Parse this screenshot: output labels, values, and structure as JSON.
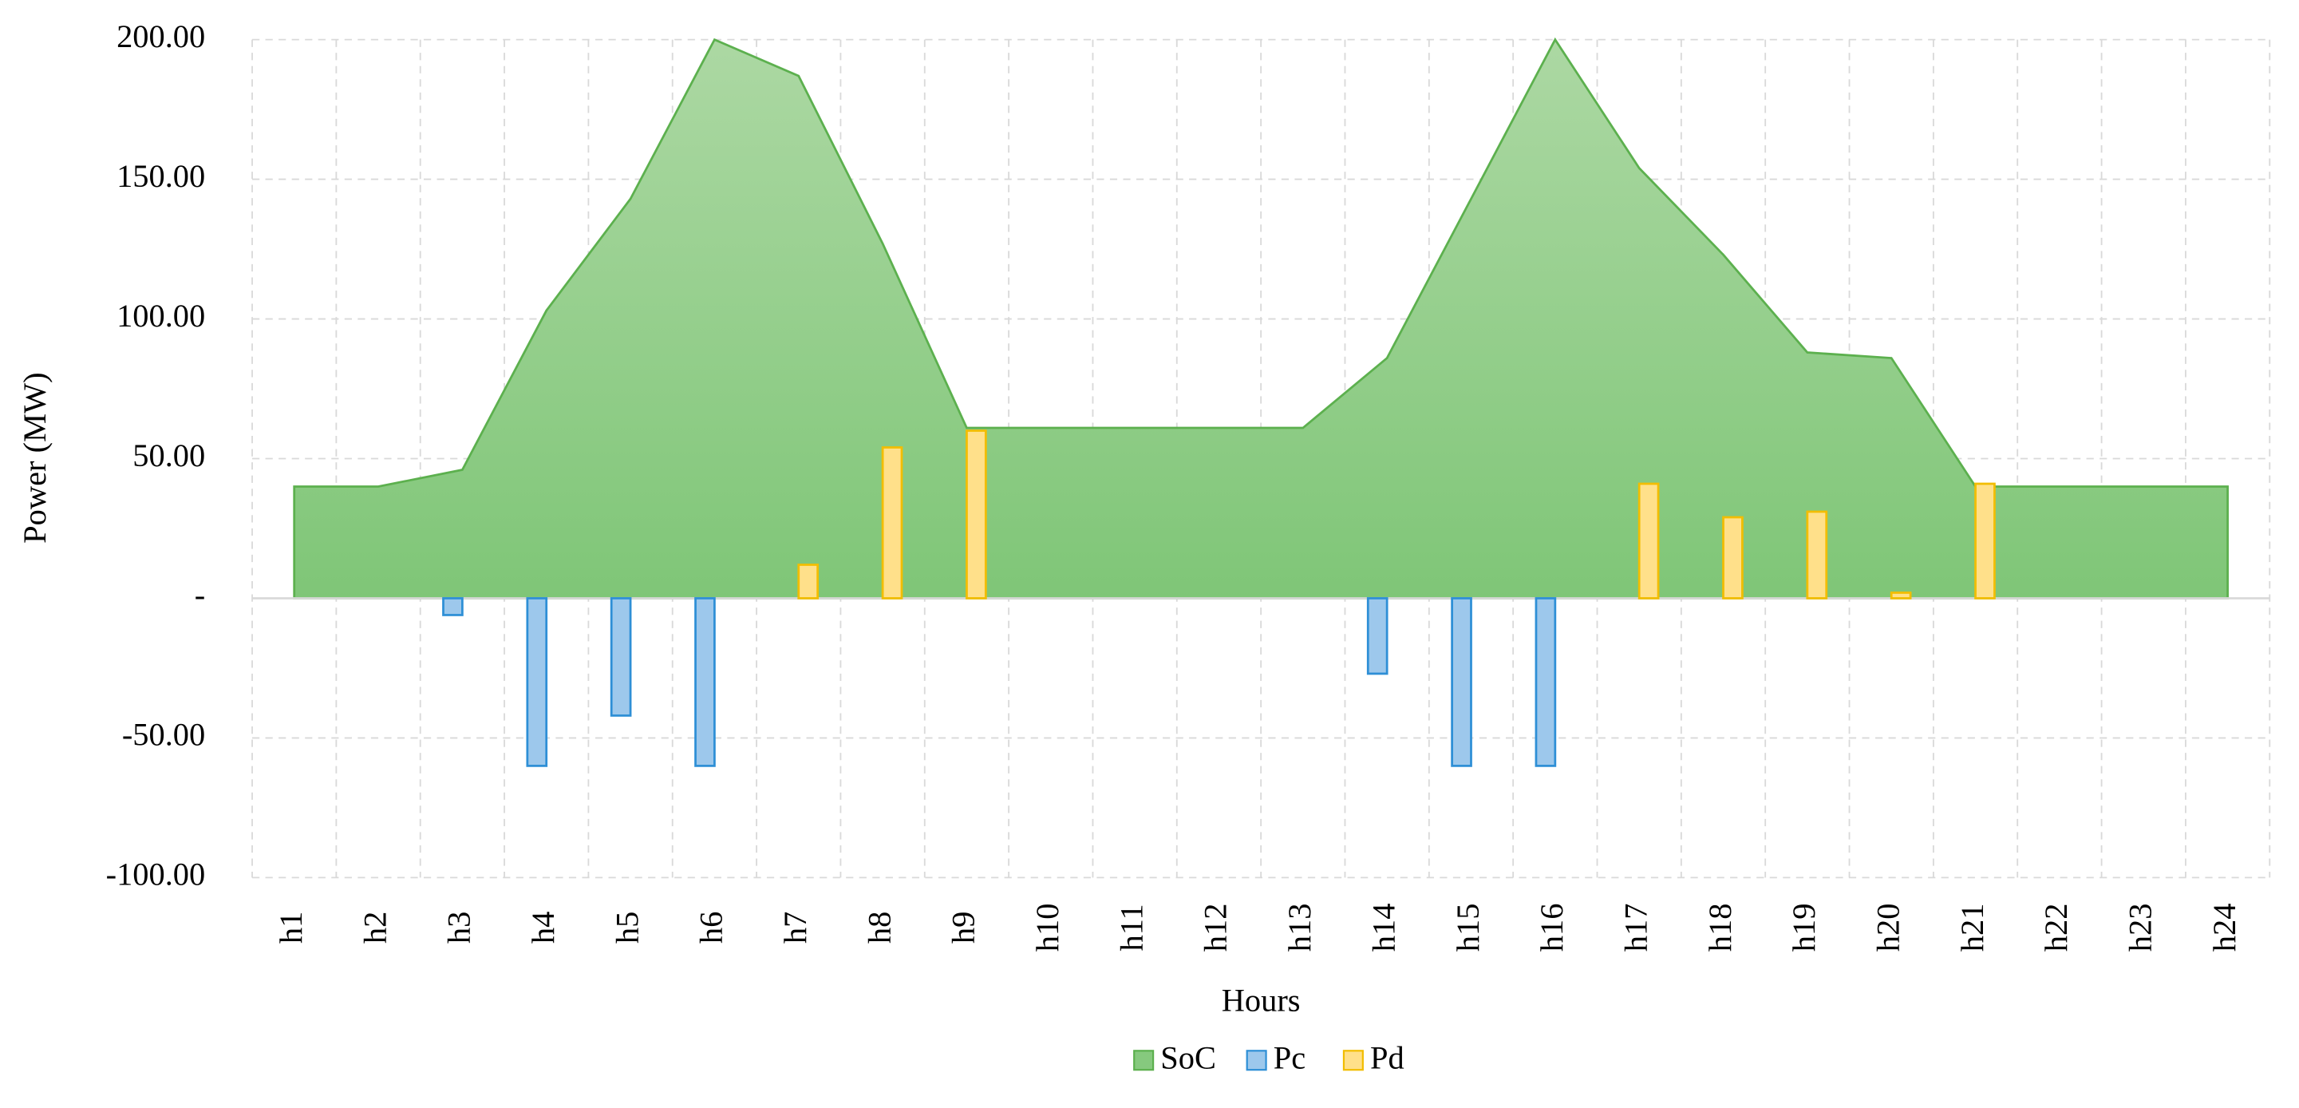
{
  "chart_data": {
    "type": "combo",
    "x_label": "Hours",
    "y_label": "Power (MW)",
    "categories": [
      "h1",
      "h2",
      "h3",
      "h4",
      "h5",
      "h6",
      "h7",
      "h8",
      "h9",
      "h10",
      "h11",
      "h12",
      "h13",
      "h14",
      "h15",
      "h16",
      "h17",
      "h18",
      "h19",
      "h20",
      "h21",
      "h22",
      "h23",
      "h24"
    ],
    "series": [
      {
        "name": "SoC",
        "type": "area",
        "color": "#86c97e",
        "values": [
          40,
          40,
          46,
          103,
          143,
          200,
          187,
          127,
          61,
          61,
          61,
          61,
          61,
          86,
          143,
          200,
          154,
          123,
          88,
          86,
          40,
          40,
          40,
          40
        ]
      },
      {
        "name": "Pc",
        "type": "bar",
        "color": "#9dc8ec",
        "values": [
          0,
          0,
          -6,
          -60,
          -42,
          -60,
          0,
          0,
          0,
          0,
          0,
          0,
          0,
          -27,
          -60,
          -60,
          0,
          0,
          0,
          0,
          0,
          0,
          0,
          0
        ]
      },
      {
        "name": "Pd",
        "type": "bar",
        "color": "#ffe08a",
        "values": [
          0,
          0,
          0,
          0,
          0,
          0,
          12,
          54,
          60,
          0,
          0,
          0,
          0,
          0,
          0,
          0,
          41,
          29,
          31,
          2,
          41,
          0,
          0,
          0
        ]
      }
    ],
    "ylim": [
      -100,
      200
    ],
    "yticks": [
      {
        "value": -100,
        "label": "-100.00"
      },
      {
        "value": -50,
        "label": "-50.00"
      },
      {
        "value": 0,
        "label": "-"
      },
      {
        "value": 50,
        "label": "50.00"
      },
      {
        "value": 100,
        "label": "100.00"
      },
      {
        "value": 150,
        "label": "150.00"
      },
      {
        "value": 200,
        "label": "200.00"
      }
    ],
    "grid": true,
    "legend": "bottom"
  }
}
